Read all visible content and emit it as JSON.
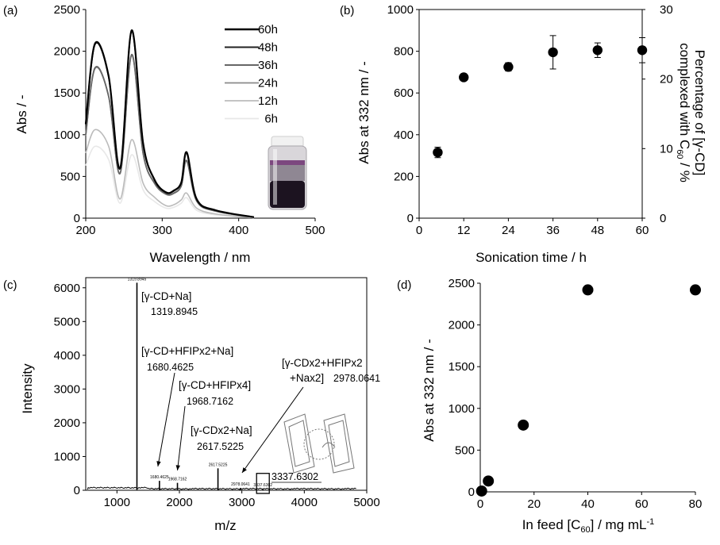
{
  "chart_data": [
    {
      "panel": "(a)",
      "type": "line",
      "xlabel": "Wavelength / nm",
      "ylabel": "Abs / -",
      "xlim": [
        200,
        500
      ],
      "ylim": [
        0,
        2500
      ],
      "xticks": [
        "200",
        "300",
        "400",
        "500"
      ],
      "yticks": [
        "0",
        "500",
        "1000",
        "1500",
        "2000",
        "2500"
      ],
      "legend_position": "top-right",
      "peaks": {
        "wavelength_1": 212,
        "wavelength_2": 260,
        "wavelength_3": 332
      },
      "series": [
        {
          "name": "60h",
          "color": "#000000",
          "width": 2.2,
          "values": [
            1130,
            2090,
            1700,
            600,
            2250,
            900,
            460,
            310,
            330,
            430,
            790,
            230,
            95,
            12
          ]
        },
        {
          "name": "48h",
          "color": "#222222",
          "width": 1.8,
          "values": [
            1120,
            2080,
            1690,
            595,
            2240,
            895,
            455,
            305,
            325,
            425,
            780,
            225,
            92,
            12
          ]
        },
        {
          "name": "36h",
          "color": "#666666",
          "width": 1.8,
          "values": [
            1000,
            1800,
            1460,
            540,
            1960,
            780,
            420,
            290,
            300,
            390,
            690,
            210,
            85,
            10
          ]
        },
        {
          "name": "24h",
          "color": "#8a8a8a",
          "width": 1.6,
          "values": [
            990,
            1790,
            1455,
            535,
            1950,
            775,
            415,
            285,
            295,
            385,
            685,
            205,
            83,
            10
          ]
        },
        {
          "name": "12h",
          "color": "#bbbbbb",
          "width": 1.6,
          "values": [
            780,
            1060,
            860,
            230,
            940,
            420,
            250,
            150,
            160,
            220,
            300,
            120,
            50,
            6
          ]
        },
        {
          "name": "6h",
          "color": "#e8e8e8",
          "width": 1.6,
          "values": [
            630,
            860,
            700,
            180,
            760,
            340,
            200,
            120,
            130,
            180,
            245,
            95,
            40,
            5
          ]
        }
      ],
      "x": [
        200,
        212,
        230,
        245,
        260,
        275,
        290,
        305,
        315,
        325,
        332,
        345,
        370,
        420
      ]
    },
    {
      "panel": "(b)",
      "type": "scatter",
      "xlabel": "Sonication time / h",
      "ylabel": "Abs at 332 nm / -",
      "ylabel_right": "Percentage of [γ-CD] complexed with C60 / %",
      "xlim": [
        0,
        60
      ],
      "ylim": [
        0,
        1000
      ],
      "ylim_right": [
        0,
        30
      ],
      "xticks": [
        "0",
        "12",
        "24",
        "36",
        "48",
        "60"
      ],
      "yticks": [
        "0",
        "200",
        "400",
        "600",
        "800",
        "1000"
      ],
      "yticks_right": [
        "0",
        "10",
        "20",
        "30"
      ],
      "x": [
        5,
        12,
        24,
        36,
        48,
        60
      ],
      "values": [
        315,
        675,
        725,
        795,
        805,
        805
      ],
      "error": [
        25,
        12,
        20,
        80,
        35,
        60
      ]
    },
    {
      "panel": "(c)",
      "type": "line",
      "xlabel": "m/z",
      "ylabel": "Intensity",
      "xlim": [
        500,
        5000
      ],
      "ylim": [
        0,
        6300
      ],
      "xticks": [
        "1000",
        "2000",
        "3000",
        "4000",
        "5000"
      ],
      "yticks": [
        "0",
        "1000",
        "2000",
        "3000",
        "4000",
        "5000",
        "6000"
      ],
      "peaks_mz": [
        1319.8945,
        1680.4625,
        1968.7162,
        2617.5225,
        2978.0641,
        3337.6302
      ],
      "peaks_intensity": [
        6150,
        280,
        220,
        650,
        70,
        50
      ],
      "annotations": [
        {
          "label": "[γ-CD+Na]",
          "value": "1319.8945"
        },
        {
          "label": "[γ-CD+HFIPx2+Na]",
          "value": "1680.4625"
        },
        {
          "label": "[γ-CD+HFIPx4]",
          "value": "1968.7162"
        },
        {
          "label": "[γ-CDx2+Na]",
          "value": "2617.5225"
        },
        {
          "label_line1": "[γ-CDx2+HFIPx2",
          "label_line2": "+Nax2]",
          "value": "2978.0641"
        },
        {
          "label": "",
          "value": "3337.6302"
        }
      ],
      "tiny_labels": [
        "1319.8945",
        "1680.4625",
        "1968.7162",
        "2617.5225",
        "2978.0641",
        "3337.6302"
      ]
    },
    {
      "panel": "(d)",
      "type": "scatter",
      "xlabel": "In feed [C60] / mg mL-1",
      "ylabel": "Abs at 332 nm / -",
      "xlim": [
        0,
        80
      ],
      "ylim": [
        0,
        2500
      ],
      "xticks": [
        "0",
        "20",
        "40",
        "60",
        "80"
      ],
      "yticks": [
        "0",
        "500",
        "1000",
        "1500",
        "2000",
        "2500"
      ],
      "x": [
        0.5,
        3,
        16,
        40,
        80
      ],
      "values": [
        10,
        130,
        800,
        2420,
        2420
      ]
    }
  ],
  "labels": {
    "panel_a": "(a)",
    "panel_b": "(b)",
    "panel_c": "(c)",
    "panel_d": "(d)",
    "a_xlabel": "Wavelength / nm",
    "a_ylabel": "Abs / -",
    "b_xlabel": "Sonication time / h",
    "b_ylabel": "Abs at 332 nm / -",
    "b_ylabel_right_1": "Percentage of [γ-CD]",
    "b_ylabel_right_2a": "complexed with C",
    "b_ylabel_right_2sub": "60",
    "b_ylabel_right_2b": " / %",
    "c_xlabel": "m/z",
    "c_ylabel": "Intensity",
    "d_xlabel_a": "In feed [C",
    "d_xlabel_sub": "60",
    "d_xlabel_b": "] / mg mL",
    "d_xlabel_sup": "-1",
    "d_ylabel": "Abs at 332 nm / -"
  },
  "colors": {
    "axis": "#000000",
    "marker": "#000000",
    "vial_purple": "#6b2f6e",
    "vial_dark": "#1c1320"
  }
}
